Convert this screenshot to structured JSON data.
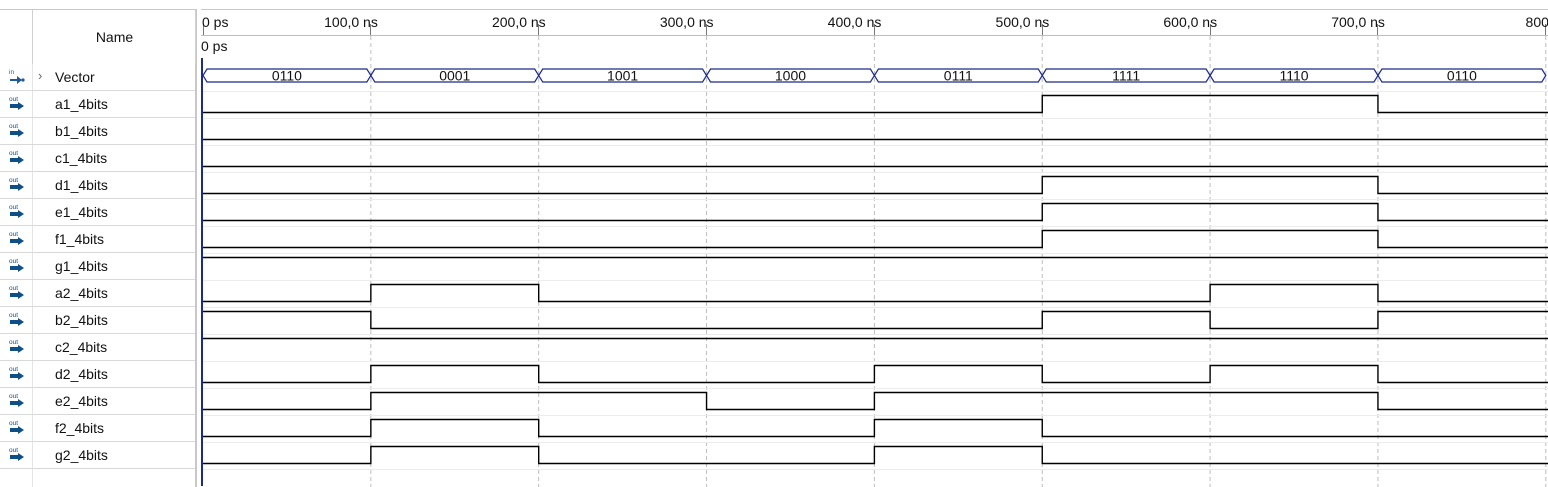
{
  "name_column_header": "Name",
  "timeline": {
    "ticks": [
      {
        "label": "0 ps",
        "time_ns": 0
      },
      {
        "label": "100,0 ns",
        "time_ns": 100
      },
      {
        "label": "200,0 ns",
        "time_ns": 200
      },
      {
        "label": "300,0 ns",
        "time_ns": 300
      },
      {
        "label": "400,0 ns",
        "time_ns": 400
      },
      {
        "label": "500,0 ns",
        "time_ns": 500
      },
      {
        "label": "600,0 ns",
        "time_ns": 600
      },
      {
        "label": "700,0 ns",
        "time_ns": 700
      },
      {
        "label": "800,",
        "time_ns": 800
      }
    ],
    "cursor_label": "0 ps"
  },
  "colors": {
    "waveform": "#000000",
    "bus_outline": "#1d2b8a",
    "gridline": "#bdbdbd",
    "input_icon": "#1f5a96",
    "output_icon": "#0e4f86"
  },
  "signals": [
    {
      "name": "Vector",
      "direction": "in",
      "icon": "input-pin-icon",
      "bus": true,
      "expander": "›",
      "segments": [
        {
          "start": 0,
          "end": 100,
          "value": "0110"
        },
        {
          "start": 100,
          "end": 200,
          "value": "0001"
        },
        {
          "start": 200,
          "end": 300,
          "value": "1001"
        },
        {
          "start": 300,
          "end": 400,
          "value": "1000"
        },
        {
          "start": 400,
          "end": 500,
          "value": "0111"
        },
        {
          "start": 500,
          "end": 600,
          "value": "1111"
        },
        {
          "start": 600,
          "end": 700,
          "value": "1110"
        },
        {
          "start": 700,
          "end": 800,
          "value": "0110"
        }
      ]
    },
    {
      "name": "a1_4bits",
      "direction": "out",
      "icon": "output-pin-icon",
      "levels": [
        0,
        0,
        0,
        0,
        0,
        1,
        1,
        0
      ]
    },
    {
      "name": "b1_4bits",
      "direction": "out",
      "icon": "output-pin-icon",
      "levels": [
        0,
        0,
        0,
        0,
        0,
        0,
        0,
        0
      ]
    },
    {
      "name": "c1_4bits",
      "direction": "out",
      "icon": "output-pin-icon",
      "levels": [
        0,
        0,
        0,
        0,
        0,
        0,
        0,
        0
      ]
    },
    {
      "name": "d1_4bits",
      "direction": "out",
      "icon": "output-pin-icon",
      "levels": [
        0,
        0,
        0,
        0,
        0,
        1,
        1,
        0
      ]
    },
    {
      "name": "e1_4bits",
      "direction": "out",
      "icon": "output-pin-icon",
      "levels": [
        0,
        0,
        0,
        0,
        0,
        1,
        1,
        0
      ]
    },
    {
      "name": "f1_4bits",
      "direction": "out",
      "icon": "output-pin-icon",
      "levels": [
        0,
        0,
        0,
        0,
        0,
        1,
        1,
        0
      ]
    },
    {
      "name": "g1_4bits",
      "direction": "out",
      "icon": "output-pin-icon",
      "levels": [
        1,
        1,
        1,
        1,
        1,
        1,
        1,
        1
      ]
    },
    {
      "name": "a2_4bits",
      "direction": "out",
      "icon": "output-pin-icon",
      "levels": [
        0,
        1,
        0,
        0,
        0,
        0,
        1,
        0
      ]
    },
    {
      "name": "b2_4bits",
      "direction": "out",
      "icon": "output-pin-icon",
      "levels": [
        1,
        0,
        0,
        0,
        0,
        1,
        0,
        1
      ]
    },
    {
      "name": "c2_4bits",
      "direction": "out",
      "icon": "output-pin-icon",
      "levels": [
        1,
        1,
        1,
        1,
        1,
        1,
        1,
        1
      ]
    },
    {
      "name": "d2_4bits",
      "direction": "out",
      "icon": "output-pin-icon",
      "levels": [
        0,
        1,
        0,
        0,
        1,
        0,
        1,
        0
      ]
    },
    {
      "name": "e2_4bits",
      "direction": "out",
      "icon": "output-pin-icon",
      "levels": [
        0,
        1,
        1,
        0,
        1,
        1,
        1,
        0
      ]
    },
    {
      "name": "f2_4bits",
      "direction": "out",
      "icon": "output-pin-icon",
      "levels": [
        0,
        1,
        0,
        0,
        1,
        0,
        0,
        0
      ]
    },
    {
      "name": "g2_4bits",
      "direction": "out",
      "icon": "output-pin-icon",
      "levels": [
        0,
        1,
        0,
        0,
        1,
        0,
        0,
        0
      ]
    }
  ]
}
